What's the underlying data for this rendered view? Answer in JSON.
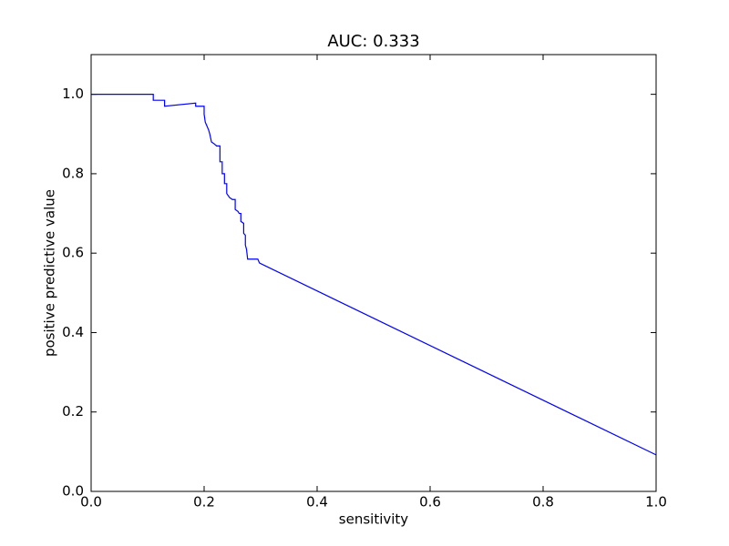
{
  "chart_data": {
    "type": "line",
    "title": "AUC: 0.333",
    "x_label": "sensitivity",
    "y_label": "positive predictive value",
    "x": [
      0,
      0.11,
      0.11,
      0.13,
      0.13,
      0.185,
      0.185,
      0.2,
      0.2,
      0.202,
      0.205,
      0.208,
      0.21,
      0.213,
      0.218,
      0.222,
      0.228,
      0.228,
      0.232,
      0.232,
      0.236,
      0.236,
      0.24,
      0.24,
      0.245,
      0.25,
      0.255,
      0.255,
      0.26,
      0.262,
      0.265,
      0.265,
      0.27,
      0.27,
      0.273,
      0.273,
      0.275,
      0.277,
      0.295,
      0.298,
      1.0
    ],
    "values": [
      1.0,
      1.0,
      0.985,
      0.985,
      0.97,
      0.978,
      0.97,
      0.97,
      0.95,
      0.93,
      0.92,
      0.91,
      0.9,
      0.88,
      0.875,
      0.87,
      0.87,
      0.83,
      0.83,
      0.8,
      0.8,
      0.775,
      0.775,
      0.75,
      0.74,
      0.735,
      0.735,
      0.71,
      0.705,
      0.7,
      0.7,
      0.68,
      0.675,
      0.65,
      0.645,
      0.62,
      0.61,
      0.585,
      0.585,
      0.575,
      0.092
    ],
    "color": "#0000ff",
    "xlim": [
      0,
      1.0
    ],
    "ylim": [
      0,
      1.1
    ],
    "xticks": [
      {
        "value": 0,
        "label": "0.0"
      },
      0.2,
      0.4,
      0.6,
      0.8,
      {
        "value": 1,
        "label": "1.0"
      }
    ],
    "yticks": [
      {
        "value": 0,
        "label": "0.0"
      },
      0.2,
      0.4,
      0.6,
      0.8,
      {
        "value": 1,
        "label": "1.0"
      }
    ],
    "grid": false
  }
}
